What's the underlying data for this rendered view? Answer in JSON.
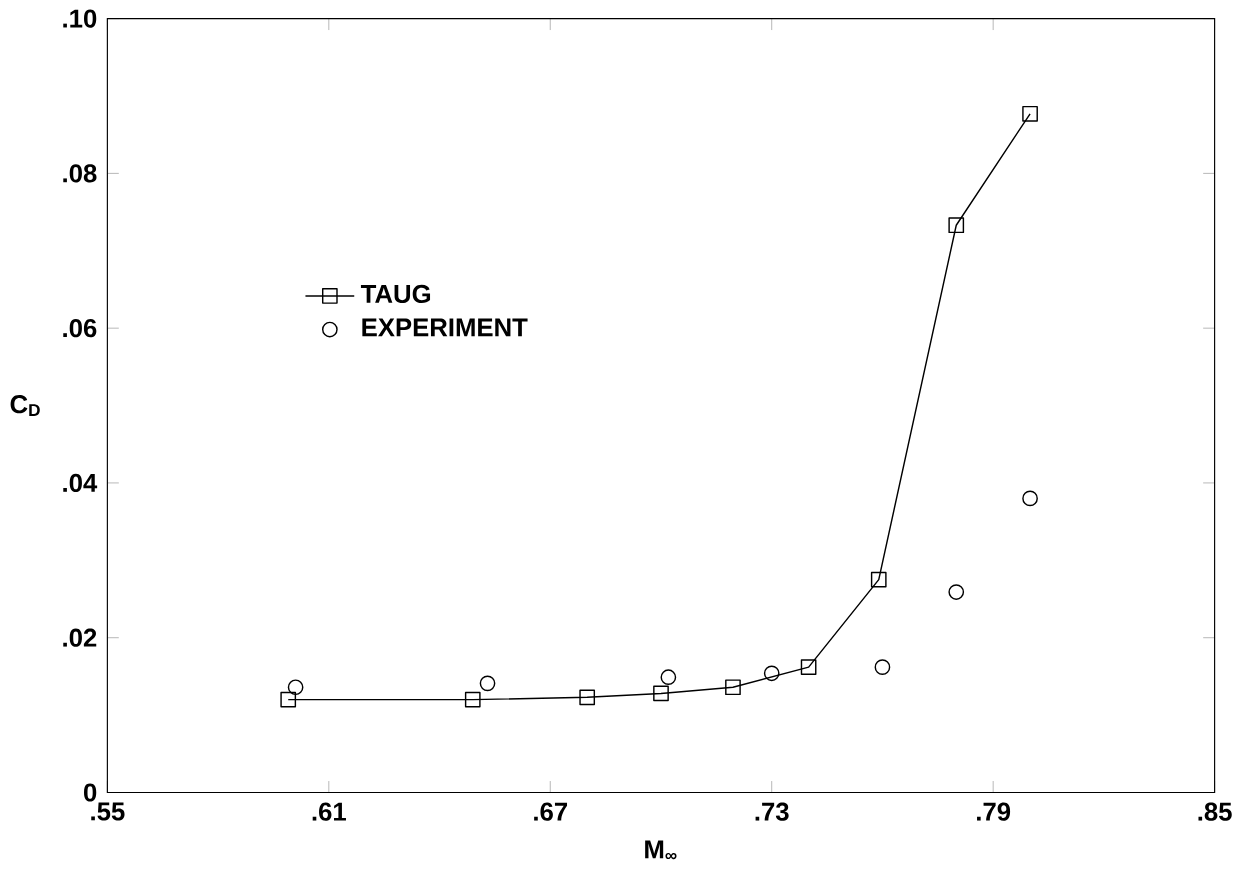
{
  "chart_data": {
    "type": "line",
    "xlabel": "M$_{∞}$",
    "ylabel": "C$_{D}$",
    "xlim": [
      0.55,
      0.85
    ],
    "ylim": [
      0,
      0.1
    ],
    "xticks": [
      {
        "value": 0.55,
        "label": ".55"
      },
      {
        "value": 0.61,
        "label": ".61"
      },
      {
        "value": 0.67,
        "label": ".67"
      },
      {
        "value": 0.73,
        "label": ".73"
      },
      {
        "value": 0.79,
        "label": ".79"
      },
      {
        "value": 0.85,
        "label": ".85"
      }
    ],
    "yticks": [
      0,
      {
        "value": 0.02,
        "label": ".02"
      },
      {
        "value": 0.04,
        "label": ".04"
      },
      {
        "value": 0.06,
        "label": ".06"
      },
      {
        "value": 0.08,
        "label": ".08"
      },
      {
        "value": 0.1,
        "label": ".10"
      }
    ],
    "legend": "left",
    "grid": false,
    "series": [
      {
        "name": "TAUG",
        "marker": "square",
        "line_style": "solid",
        "color": "#000000",
        "x": [
          0.599,
          0.649,
          0.68,
          0.7,
          0.7195,
          0.74,
          0.759,
          0.78,
          0.8
        ],
        "values": [
          0.012,
          0.012,
          0.0123,
          0.0128,
          0.0136,
          0.0162,
          0.0275,
          0.0733,
          0.0877
        ]
      },
      {
        "name": "EXPERIMENT",
        "type": "scatter",
        "marker": "circle",
        "color": "#000000",
        "x": [
          0.601,
          0.653,
          0.702,
          0.73,
          0.76,
          0.78,
          0.8
        ],
        "values": [
          0.0136,
          0.0141,
          0.0149,
          0.0154,
          0.0162,
          0.0259,
          0.038
        ]
      }
    ]
  }
}
